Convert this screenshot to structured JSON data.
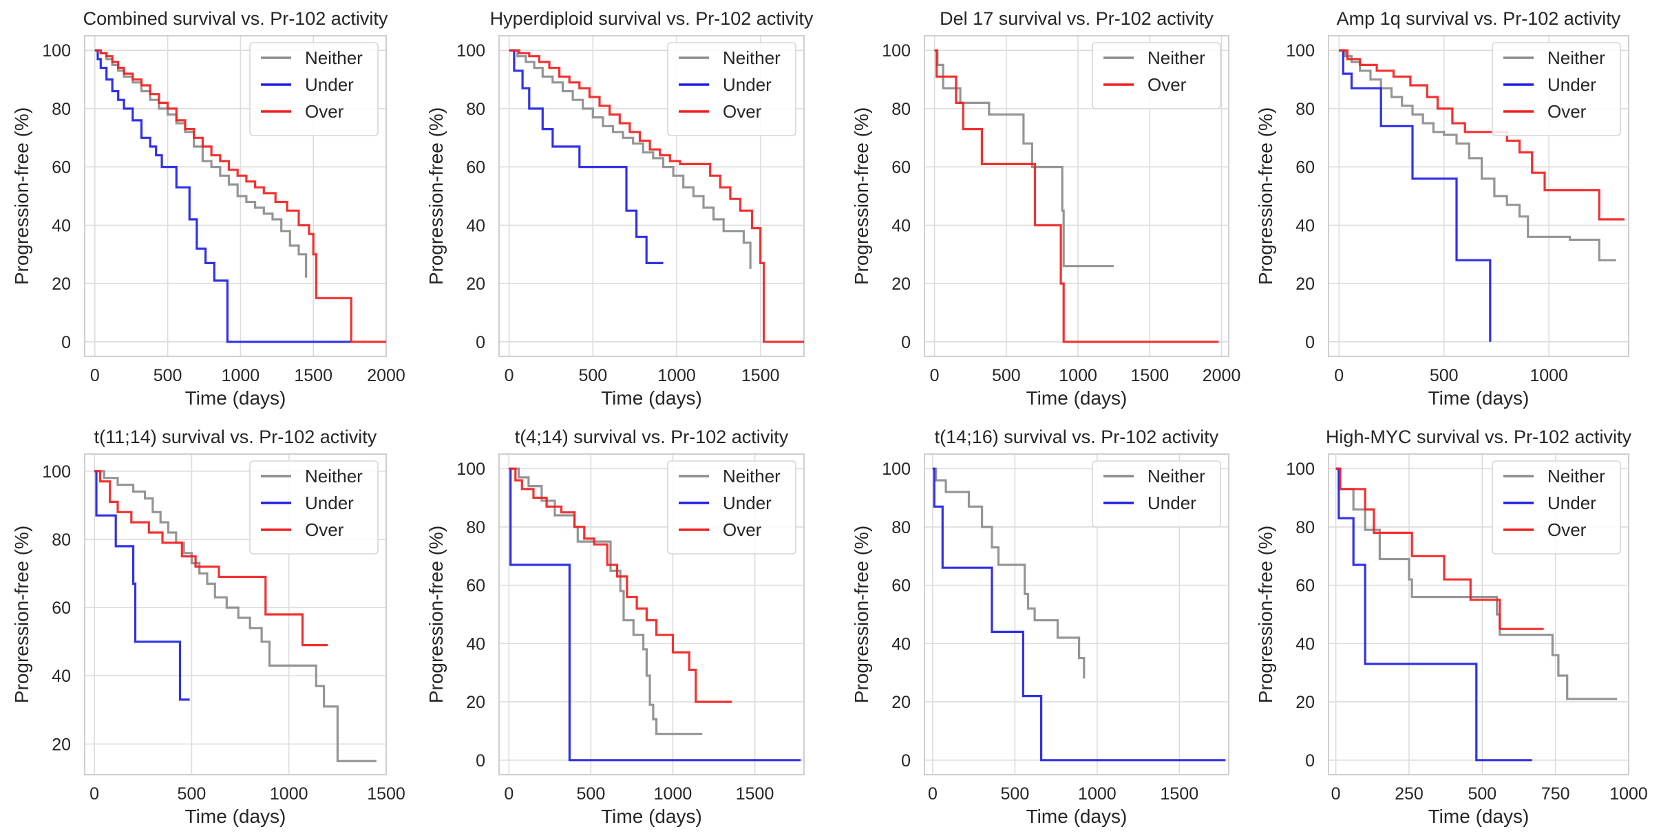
{
  "figure": {
    "series_colors": {
      "Neither": "#8c8c8c",
      "Under": "#1f1fe6",
      "Over": "#f21f1f"
    }
  },
  "chart_data": [
    {
      "type": "line",
      "step": true,
      "title": "Combined survival vs. Pr-102 activity",
      "xlabel": "Time (days)",
      "ylabel": "Progression-free (%)",
      "xlim": [
        -70,
        2000
      ],
      "ylim": [
        -5,
        105
      ],
      "xticks": [
        0,
        500,
        1000,
        1500,
        2000
      ],
      "xtick_labels": [
        "0",
        "500",
        "1000",
        "1500",
        "2000"
      ],
      "yticks": [
        0,
        20,
        40,
        60,
        80,
        100
      ],
      "ytick_labels": [
        "0",
        "20",
        "40",
        "60",
        "80",
        "100"
      ],
      "legend": "top-right",
      "grid": true,
      "series": [
        {
          "name": "Neither",
          "x": [
            0,
            40,
            80,
            120,
            160,
            200,
            260,
            320,
            380,
            440,
            500,
            560,
            620,
            680,
            740,
            800,
            860,
            920,
            980,
            1040,
            1100,
            1160,
            1220,
            1280,
            1340,
            1400,
            1450
          ],
          "y": [
            100,
            99,
            97,
            95,
            93,
            91,
            89,
            86,
            83,
            80,
            78,
            75,
            72,
            67,
            62,
            60,
            57,
            54,
            50,
            48,
            46,
            44,
            42,
            38,
            33,
            30,
            22
          ]
        },
        {
          "name": "Under",
          "x": [
            0,
            20,
            40,
            80,
            120,
            160,
            200,
            260,
            320,
            380,
            420,
            460,
            500,
            560,
            650,
            700,
            720,
            760,
            820,
            910,
            1760
          ],
          "y": [
            100,
            97,
            94,
            90,
            86,
            83,
            80,
            76,
            70,
            67,
            64,
            60,
            60,
            53,
            42,
            32,
            32,
            27,
            21,
            0,
            0
          ]
        },
        {
          "name": "Over",
          "x": [
            0,
            40,
            80,
            120,
            160,
            200,
            260,
            320,
            380,
            440,
            500,
            560,
            620,
            680,
            740,
            800,
            860,
            920,
            980,
            1040,
            1100,
            1160,
            1240,
            1320,
            1400,
            1470,
            1500,
            1520,
            1760,
            2000
          ],
          "y": [
            100,
            99,
            98,
            96,
            94,
            92,
            90,
            88,
            85,
            82,
            80,
            76,
            73,
            70,
            67,
            64,
            62,
            59,
            57,
            55,
            53,
            51,
            48,
            45,
            40,
            37,
            30,
            15,
            0,
            0
          ]
        }
      ]
    },
    {
      "type": "line",
      "step": true,
      "title": "Hyperdiploid survival vs. Pr-102 activity",
      "xlabel": "Time (days)",
      "ylabel": "Progression-free (%)",
      "xlim": [
        -60,
        1760
      ],
      "ylim": [
        -5,
        105
      ],
      "xticks": [
        0,
        500,
        1000,
        1500
      ],
      "xtick_labels": [
        "0",
        "500",
        "1000",
        "1500"
      ],
      "yticks": [
        0,
        20,
        40,
        60,
        80,
        100
      ],
      "ytick_labels": [
        "0",
        "20",
        "40",
        "60",
        "80",
        "100"
      ],
      "legend": "top-right",
      "grid": true,
      "series": [
        {
          "name": "Neither",
          "x": [
            0,
            50,
            100,
            150,
            200,
            260,
            320,
            380,
            440,
            500,
            560,
            620,
            680,
            740,
            800,
            860,
            920,
            980,
            1040,
            1100,
            1160,
            1220,
            1280,
            1340,
            1400,
            1440
          ],
          "y": [
            100,
            98,
            96,
            94,
            91,
            89,
            86,
            83,
            80,
            77,
            74,
            72,
            70,
            68,
            65,
            63,
            60,
            57,
            53,
            50,
            46,
            42,
            38,
            38,
            34,
            25
          ]
        },
        {
          "name": "Under",
          "x": [
            0,
            30,
            80,
            120,
            200,
            260,
            300,
            420,
            700,
            760,
            820,
            850,
            920
          ],
          "y": [
            100,
            93,
            87,
            80,
            73,
            67,
            67,
            60,
            45,
            36,
            27,
            27,
            27
          ]
        },
        {
          "name": "Over",
          "x": [
            0,
            60,
            120,
            180,
            240,
            300,
            360,
            420,
            480,
            540,
            600,
            660,
            720,
            780,
            840,
            900,
            960,
            1020,
            1080,
            1140,
            1200,
            1260,
            1320,
            1380,
            1450,
            1500,
            1520,
            1760
          ],
          "y": [
            100,
            99,
            98,
            96,
            94,
            91,
            89,
            87,
            84,
            81,
            78,
            75,
            72,
            69,
            66,
            64,
            62,
            61,
            61,
            61,
            57,
            53,
            49,
            45,
            39,
            27,
            0,
            0
          ]
        }
      ]
    },
    {
      "type": "line",
      "step": true,
      "title": "Del 17 survival vs. Pr-102 activity",
      "xlabel": "Time (days)",
      "ylabel": "Progression-free (%)",
      "xlim": [
        -70,
        2050
      ],
      "ylim": [
        -5,
        105
      ],
      "xticks": [
        0,
        500,
        1000,
        1500,
        2000
      ],
      "xtick_labels": [
        "0",
        "500",
        "1000",
        "1500",
        "2000"
      ],
      "yticks": [
        0,
        20,
        40,
        60,
        80,
        100
      ],
      "ytick_labels": [
        "0",
        "20",
        "40",
        "60",
        "80",
        "100"
      ],
      "legend": "top-right",
      "grid": true,
      "series": [
        {
          "name": "Neither",
          "x": [
            0,
            20,
            60,
            180,
            380,
            620,
            680,
            850,
            890,
            900,
            1250
          ],
          "y": [
            100,
            95,
            87,
            82,
            78,
            68,
            60,
            60,
            45,
            26,
            26
          ]
        },
        {
          "name": "Over",
          "x": [
            0,
            15,
            150,
            200,
            330,
            700,
            880,
            900,
            1980
          ],
          "y": [
            100,
            91,
            82,
            73,
            61,
            40,
            20,
            0,
            0
          ]
        }
      ]
    },
    {
      "type": "line",
      "step": true,
      "title": "Amp 1q survival vs. Pr-102 activity",
      "xlabel": "Time (days)",
      "ylabel": "Progression-free (%)",
      "xlim": [
        -50,
        1380
      ],
      "ylim": [
        -5,
        105
      ],
      "xticks": [
        0,
        500,
        1000
      ],
      "xtick_labels": [
        "0",
        "500",
        "1000"
      ],
      "yticks": [
        0,
        20,
        40,
        60,
        80,
        100
      ],
      "ytick_labels": [
        "0",
        "20",
        "40",
        "60",
        "80",
        "100"
      ],
      "legend": "top-right",
      "grid": true,
      "series": [
        {
          "name": "Neither",
          "x": [
            0,
            30,
            60,
            100,
            150,
            200,
            250,
            300,
            350,
            400,
            450,
            500,
            560,
            620,
            680,
            740,
            800,
            860,
            900,
            1100,
            1240,
            1320
          ],
          "y": [
            100,
            98,
            96,
            93,
            90,
            87,
            84,
            81,
            78,
            75,
            72,
            71,
            68,
            63,
            56,
            50,
            47,
            43,
            36,
            35,
            28,
            28
          ]
        },
        {
          "name": "Under",
          "x": [
            0,
            20,
            60,
            200,
            350,
            560,
            720
          ],
          "y": [
            100,
            92,
            87,
            74,
            56,
            28,
            0
          ]
        },
        {
          "name": "Over",
          "x": [
            0,
            40,
            100,
            180,
            260,
            340,
            420,
            470,
            540,
            600,
            740,
            800,
            860,
            920,
            980,
            1240,
            1360
          ],
          "y": [
            100,
            97,
            95,
            93,
            91,
            88,
            84,
            80,
            75,
            72,
            72,
            69,
            65,
            58,
            52,
            42,
            42
          ]
        }
      ]
    },
    {
      "type": "line",
      "step": true,
      "title": "t(11;14) survival vs. Pr-102 activity",
      "xlabel": "Time (days)",
      "ylabel": "Progression-free (%)",
      "xlim": [
        -50,
        1500
      ],
      "ylim": [
        11,
        105
      ],
      "xticks": [
        0,
        500,
        1000,
        1500
      ],
      "xtick_labels": [
        "0",
        "500",
        "1000",
        "1500"
      ],
      "yticks": [
        20,
        40,
        60,
        80,
        100
      ],
      "ytick_labels": [
        "20",
        "40",
        "60",
        "80",
        "100"
      ],
      "legend": "top-right",
      "grid": true,
      "series": [
        {
          "name": "Neither",
          "x": [
            0,
            50,
            120,
            200,
            260,
            300,
            340,
            380,
            420,
            460,
            500,
            540,
            580,
            620,
            680,
            740,
            800,
            860,
            900,
            1140,
            1180,
            1250,
            1450
          ],
          "y": [
            100,
            98,
            96,
            94,
            92,
            88,
            85,
            82,
            79,
            76,
            73,
            70,
            67,
            63,
            60,
            57,
            54,
            50,
            43,
            37,
            31,
            15,
            15
          ]
        },
        {
          "name": "Under",
          "x": [
            0,
            10,
            110,
            200,
            210,
            440,
            490
          ],
          "y": [
            100,
            87,
            78,
            67,
            50,
            33,
            33
          ]
        },
        {
          "name": "Over",
          "x": [
            0,
            30,
            80,
            120,
            190,
            280,
            350,
            450,
            520,
            640,
            880,
            1070,
            1200
          ],
          "y": [
            100,
            97,
            91,
            88,
            85,
            82,
            79,
            75,
            72,
            69,
            58,
            49,
            49
          ]
        }
      ]
    },
    {
      "type": "line",
      "step": true,
      "title": "t(4;14) survival vs. Pr-102 activity",
      "xlabel": "Time (days)",
      "ylabel": "Progression-free (%)",
      "xlim": [
        -60,
        1800
      ],
      "ylim": [
        -5,
        105
      ],
      "xticks": [
        0,
        500,
        1000,
        1500
      ],
      "xtick_labels": [
        "0",
        "500",
        "1000",
        "1500"
      ],
      "yticks": [
        0,
        20,
        40,
        60,
        80,
        100
      ],
      "ytick_labels": [
        "0",
        "20",
        "40",
        "60",
        "80",
        "100"
      ],
      "legend": "top-right",
      "grid": true,
      "series": [
        {
          "name": "Neither",
          "x": [
            0,
            60,
            120,
            200,
            280,
            400,
            420,
            620,
            680,
            700,
            760,
            820,
            840,
            860,
            880,
            900,
            1180
          ],
          "y": [
            100,
            97,
            94,
            89,
            84,
            80,
            75,
            65,
            58,
            48,
            43,
            38,
            29,
            19,
            14,
            9,
            9
          ]
        },
        {
          "name": "Under",
          "x": [
            0,
            10,
            370,
            1780
          ],
          "y": [
            100,
            67,
            0,
            0
          ]
        },
        {
          "name": "Over",
          "x": [
            0,
            40,
            80,
            150,
            230,
            320,
            400,
            460,
            520,
            600,
            660,
            720,
            780,
            840,
            900,
            1000,
            1100,
            1140,
            1360
          ],
          "y": [
            100,
            96,
            93,
            90,
            87,
            85,
            80,
            76,
            74,
            67,
            63,
            56,
            52,
            48,
            43,
            37,
            31,
            20,
            20
          ]
        }
      ]
    },
    {
      "type": "line",
      "step": true,
      "title": "t(14;16) survival vs. Pr-102 activity",
      "xlabel": "Time (days)",
      "ylabel": "Progression-free (%)",
      "xlim": [
        -50,
        1800
      ],
      "ylim": [
        -5,
        105
      ],
      "xticks": [
        0,
        500,
        1000,
        1500
      ],
      "xtick_labels": [
        "0",
        "500",
        "1000",
        "1500"
      ],
      "yticks": [
        0,
        20,
        40,
        60,
        80,
        100
      ],
      "ytick_labels": [
        "0",
        "20",
        "40",
        "60",
        "80",
        "100"
      ],
      "legend": "top-right",
      "grid": true,
      "series": [
        {
          "name": "Neither",
          "x": [
            0,
            20,
            80,
            220,
            300,
            360,
            400,
            560,
            580,
            620,
            760,
            890,
            920
          ],
          "y": [
            100,
            96,
            92,
            87,
            80,
            73,
            67,
            57,
            52,
            48,
            42,
            35,
            28
          ]
        },
        {
          "name": "Under",
          "x": [
            0,
            10,
            60,
            360,
            550,
            660,
            1780
          ],
          "y": [
            100,
            87,
            66,
            44,
            22,
            0,
            0
          ]
        }
      ]
    },
    {
      "type": "line",
      "step": true,
      "title": "High-MYC survival vs. Pr-102 activity",
      "xlabel": "Time (days)",
      "ylabel": "Progression-free (%)",
      "xlim": [
        -25,
        1000
      ],
      "ylim": [
        -5,
        105
      ],
      "xticks": [
        0,
        250,
        500,
        750,
        1000
      ],
      "xtick_labels": [
        "0",
        "250",
        "500",
        "750",
        "1000"
      ],
      "yticks": [
        0,
        20,
        40,
        60,
        80,
        100
      ],
      "ytick_labels": [
        "0",
        "20",
        "40",
        "60",
        "80",
        "100"
      ],
      "legend": "top-right",
      "grid": true,
      "series": [
        {
          "name": "Neither",
          "x": [
            0,
            10,
            60,
            100,
            150,
            250,
            260,
            550,
            560,
            740,
            760,
            790,
            960
          ],
          "y": [
            100,
            93,
            86,
            79,
            69,
            62,
            56,
            50,
            43,
            36,
            29,
            21,
            21
          ]
        },
        {
          "name": "Under",
          "x": [
            0,
            10,
            60,
            100,
            480,
            670
          ],
          "y": [
            100,
            83,
            67,
            33,
            0,
            0
          ]
        },
        {
          "name": "Over",
          "x": [
            0,
            15,
            100,
            130,
            200,
            260,
            370,
            460,
            560,
            710
          ],
          "y": [
            100,
            93,
            86,
            78,
            78,
            70,
            62,
            55,
            45,
            45
          ]
        }
      ]
    }
  ]
}
